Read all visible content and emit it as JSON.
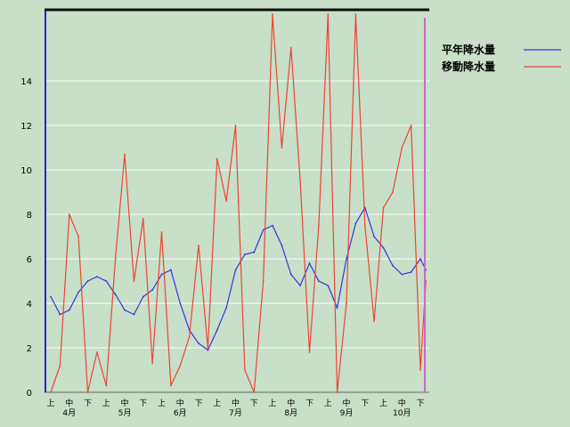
{
  "chart_data": {
    "type": "line",
    "title": "",
    "xlabel": "",
    "ylabel": "",
    "ylim": [
      0,
      17
    ],
    "yticks": [
      0,
      2,
      4,
      6,
      8,
      10,
      12,
      14
    ],
    "grid": true,
    "legend_position": "top-right",
    "x_period_labels": [
      "上",
      "中",
      "下",
      "上",
      "中",
      "下",
      "上",
      "中",
      "下",
      "上",
      "中",
      "下",
      "上",
      "中",
      "下",
      "上",
      "中",
      "下",
      "上",
      "中",
      "下"
    ],
    "x_month_labels": [
      "4月",
      "5月",
      "6月",
      "7月",
      "8月",
      "9月",
      "10月"
    ],
    "series": [
      {
        "name": "平年降水量",
        "color": "#3333dd",
        "x": [
          0,
          0.5,
          1,
          1.5,
          2,
          2.5,
          3,
          3.5,
          4,
          4.5,
          5,
          5.5,
          6,
          6.5,
          7,
          7.5,
          8,
          8.5,
          9,
          9.5,
          10,
          10.5,
          11,
          11.5,
          12,
          12.5,
          13,
          13.5,
          14,
          14.5,
          15,
          15.5,
          16,
          16.5,
          17,
          17.5,
          18,
          18.5,
          19,
          19.5,
          20,
          20.3
        ],
        "values": [
          4.3,
          3.5,
          3.7,
          4.5,
          5.0,
          5.2,
          5.0,
          4.4,
          3.7,
          3.5,
          4.3,
          4.6,
          5.3,
          5.5,
          4.0,
          2.8,
          2.2,
          1.9,
          2.8,
          3.8,
          5.5,
          6.2,
          6.3,
          7.3,
          7.5,
          6.6,
          5.3,
          4.8,
          5.8,
          5.0,
          4.8,
          3.8,
          6.0,
          7.6,
          8.3,
          7.0,
          6.5,
          5.7,
          5.3,
          5.4,
          6.0,
          5.5
        ]
      },
      {
        "name": "移動降水量",
        "color": "#ee4433",
        "x": [
          0,
          0.5,
          1,
          1.5,
          2,
          2.5,
          3,
          3.5,
          4,
          4.5,
          5,
          5.5,
          6,
          6.5,
          7,
          7.5,
          8,
          8.5,
          9,
          9.5,
          10,
          10.5,
          11,
          11.5,
          12,
          12.5,
          13,
          13.5,
          14,
          14.5,
          15,
          15.5,
          16,
          16.5,
          17,
          17.5,
          18,
          18.5,
          19,
          19.5,
          20,
          20.3
        ],
        "values": [
          0.0,
          1.2,
          8.0,
          7.0,
          0.0,
          1.8,
          0.3,
          6.0,
          10.7,
          5.0,
          7.8,
          1.3,
          7.2,
          0.3,
          1.2,
          2.5,
          6.6,
          2.0,
          10.5,
          8.6,
          12.0,
          1.0,
          0.0,
          5.0,
          17.0,
          11.0,
          15.5,
          9.5,
          1.8,
          7.5,
          17.0,
          0.0,
          4.0,
          17.0,
          7.5,
          3.2,
          8.3,
          9.0,
          11.0,
          12.0,
          1.0,
          5.0
        ]
      }
    ]
  }
}
